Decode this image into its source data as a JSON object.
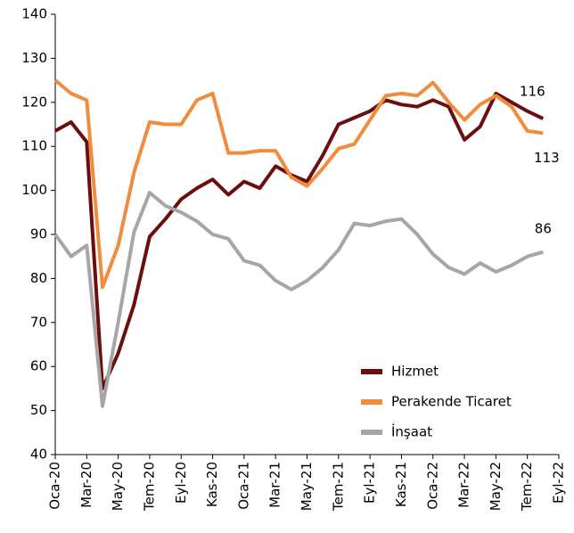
{
  "chart_data": {
    "type": "line",
    "categories": [
      "Oca-20",
      null,
      "Mar-20",
      null,
      "May-20",
      null,
      "Tem-20",
      null,
      "Eyl-20",
      null,
      "Kas-20",
      null,
      "Oca-21",
      null,
      "Mar-21",
      null,
      "May-21",
      null,
      "Tem-21",
      null,
      "Eyl-21",
      null,
      "Kas-21",
      null,
      "Oca-22",
      null,
      "Mar-22",
      null,
      "May-22",
      null,
      "Tem-22",
      null,
      "Eyl-22"
    ],
    "series": [
      {
        "name": "Hizmet",
        "color": "#6b0e0e",
        "values": [
          113.5,
          115.5,
          111,
          55,
          63,
          74,
          89.5,
          93.5,
          98,
          100.5,
          102.5,
          99,
          102,
          100.5,
          105.5,
          103.5,
          102,
          108,
          115,
          116.5,
          118,
          120.5,
          119.5,
          119,
          120.5,
          119,
          111.5,
          114.5,
          122,
          120,
          118,
          116.3,
          null
        ],
        "value_labels": [
          null,
          null,
          null,
          null,
          null,
          null,
          null,
          null,
          null,
          null,
          null,
          null,
          null,
          null,
          null,
          null,
          null,
          null,
          null,
          null,
          null,
          null,
          null,
          null,
          null,
          null,
          null,
          null,
          null,
          null,
          null,
          "116",
          null
        ]
      },
      {
        "name": "Perakende Ticaret",
        "color": "#f28c3c",
        "values": [
          125,
          122,
          120.5,
          78,
          87.5,
          104,
          115.5,
          115,
          115,
          120.5,
          122,
          108.5,
          108.5,
          109,
          109,
          103,
          101,
          105,
          109.5,
          110.5,
          116,
          121.5,
          122,
          121.5,
          124.5,
          120,
          116,
          119.5,
          121.5,
          119,
          113.5,
          113,
          null
        ],
        "value_labels": [
          null,
          null,
          null,
          null,
          null,
          null,
          null,
          null,
          null,
          null,
          null,
          null,
          null,
          null,
          null,
          null,
          null,
          null,
          null,
          null,
          null,
          null,
          null,
          null,
          null,
          null,
          null,
          null,
          null,
          null,
          null,
          "113",
          null
        ]
      },
      {
        "name": "İnşaat",
        "color": "#a6a6a6",
        "values": [
          90,
          85,
          87.5,
          51,
          70,
          90.5,
          99.5,
          96.5,
          95,
          93,
          90,
          89,
          84,
          83,
          79.5,
          77.5,
          79.5,
          82.5,
          86.5,
          92.5,
          92,
          93,
          93.5,
          90,
          85.5,
          82.5,
          81,
          83.5,
          81.5,
          83,
          85,
          86,
          null
        ],
        "value_labels": [
          null,
          null,
          null,
          null,
          null,
          null,
          null,
          null,
          null,
          null,
          null,
          null,
          null,
          null,
          null,
          null,
          null,
          null,
          null,
          null,
          null,
          null,
          null,
          null,
          null,
          null,
          null,
          null,
          null,
          null,
          null,
          "86",
          null
        ]
      }
    ],
    "ylim": [
      40,
      140
    ],
    "yticks": [
      40,
      50,
      60,
      70,
      80,
      90,
      100,
      110,
      120,
      130,
      140
    ],
    "grid": false,
    "legend": "lower right"
  }
}
